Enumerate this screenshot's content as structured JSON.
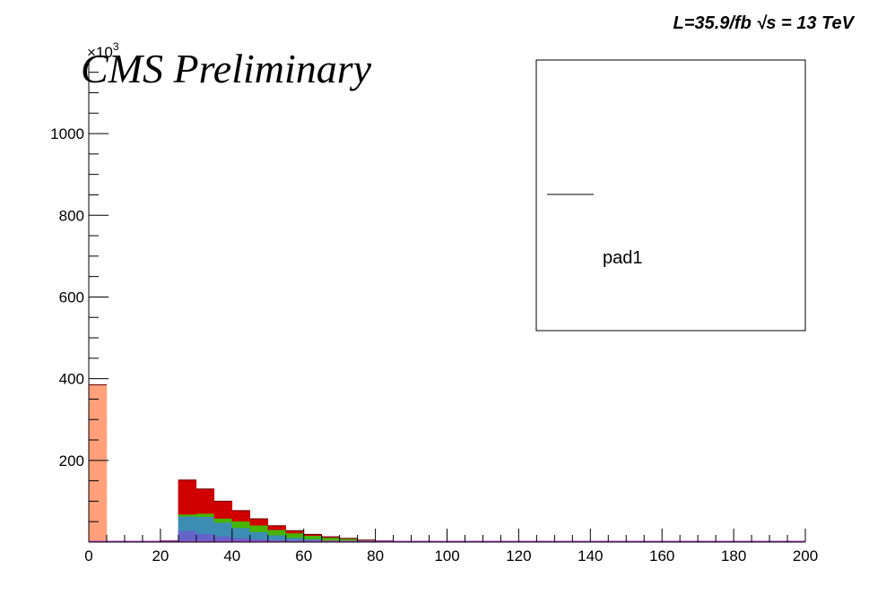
{
  "chart_data": {
    "type": "bar",
    "stacked": true,
    "header_left": "CMS Preliminary",
    "header_right": "L=35.9/fb  √s = 13 TeV",
    "y_exponent": "×10",
    "y_exponent_power": "3",
    "xlim": [
      0,
      200
    ],
    "ylim": [
      0,
      1180
    ],
    "bin_width": 5,
    "x_ticks": [
      "0",
      "20",
      "40",
      "60",
      "80",
      "100",
      "120",
      "140",
      "160",
      "180",
      "200"
    ],
    "x_tick_values": [
      0,
      20,
      40,
      60,
      80,
      100,
      120,
      140,
      160,
      180,
      200
    ],
    "y_ticks": [
      "200",
      "400",
      "600",
      "800",
      "1000"
    ],
    "y_tick_values": [
      200,
      400,
      600,
      800,
      1000
    ],
    "legend": {
      "label": "pad1",
      "placement": "top-right"
    },
    "series": [
      {
        "color": "#ffa07a",
        "values": [
          385,
          0,
          0,
          0,
          0,
          0,
          0,
          0,
          0,
          0,
          0,
          0,
          0,
          0,
          0,
          0,
          0,
          0,
          0,
          0
        ]
      },
      {
        "color": "#6464c8",
        "values": [
          0,
          0,
          0,
          0,
          0,
          28,
          20,
          14,
          10,
          7,
          5,
          3,
          2,
          1,
          1,
          0,
          0,
          0,
          0,
          0
        ]
      },
      {
        "color": "#3c8cb4",
        "values": [
          0,
          0,
          0,
          0,
          0,
          35,
          42,
          34,
          25,
          18,
          12,
          8,
          5,
          3,
          2,
          1,
          1,
          0,
          0,
          0
        ]
      },
      {
        "color": "#46b400",
        "values": [
          0,
          0,
          0,
          0,
          0,
          5,
          8,
          10,
          16,
          16,
          13,
          11,
          9,
          7,
          5,
          4,
          2,
          1,
          1,
          0
        ]
      },
      {
        "color": "#d00000",
        "values": [
          0,
          0,
          0,
          0,
          3,
          84,
          60,
          42,
          26,
          16,
          10,
          6,
          3,
          2,
          1,
          0,
          0,
          0,
          0,
          0
        ]
      }
    ]
  }
}
